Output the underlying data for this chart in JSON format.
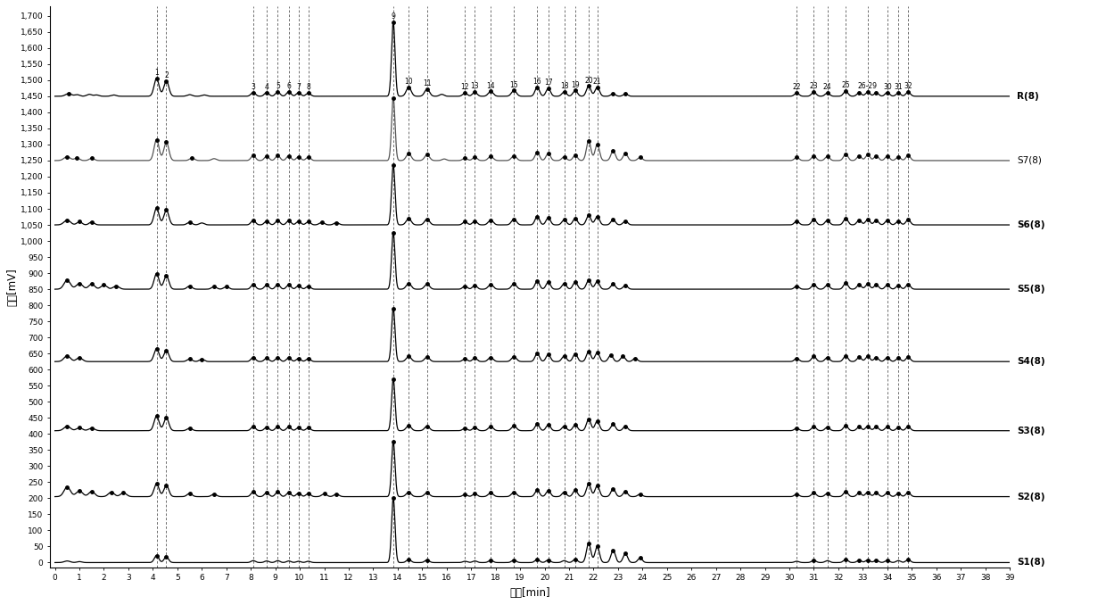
{
  "xlabel": "时间[min]",
  "ylabel": "信号[mV]",
  "x_min": 0,
  "x_max": 39,
  "y_min": 0,
  "y_max": 1700,
  "y_ticks": [
    0,
    50,
    100,
    150,
    200,
    250,
    300,
    350,
    400,
    450,
    500,
    550,
    600,
    650,
    700,
    750,
    800,
    850,
    900,
    950,
    1000,
    1050,
    1100,
    1150,
    1200,
    1250,
    1300,
    1350,
    1400,
    1450,
    1500,
    1550,
    1600,
    1650,
    1700
  ],
  "x_ticks": [
    0,
    1,
    2,
    3,
    4,
    5,
    6,
    7,
    8,
    9,
    10,
    11,
    12,
    13,
    14,
    15,
    16,
    17,
    18,
    19,
    20,
    21,
    22,
    23,
    24,
    25,
    26,
    27,
    28,
    29,
    30,
    31,
    32,
    33,
    34,
    35,
    36,
    37,
    38,
    39
  ],
  "traces": [
    {
      "label": "R(8)",
      "baseline": 1450,
      "bold": true,
      "color": "#000000"
    },
    {
      "label": "S7(8)",
      "baseline": 1250,
      "bold": false,
      "color": "#555555"
    },
    {
      "label": "S6(8)",
      "baseline": 1050,
      "bold": true,
      "color": "#000000"
    },
    {
      "label": "S5(8)",
      "baseline": 850,
      "bold": true,
      "color": "#000000"
    },
    {
      "label": "S4(8)",
      "baseline": 625,
      "bold": true,
      "color": "#000000"
    },
    {
      "label": "S3(8)",
      "baseline": 410,
      "bold": true,
      "color": "#000000"
    },
    {
      "label": "S2(8)",
      "baseline": 205,
      "bold": true,
      "color": "#000000"
    },
    {
      "label": "S1(8)",
      "baseline": 0,
      "bold": true,
      "color": "#000000"
    }
  ],
  "bg_color": "#ffffff",
  "trace_color": "#000000"
}
